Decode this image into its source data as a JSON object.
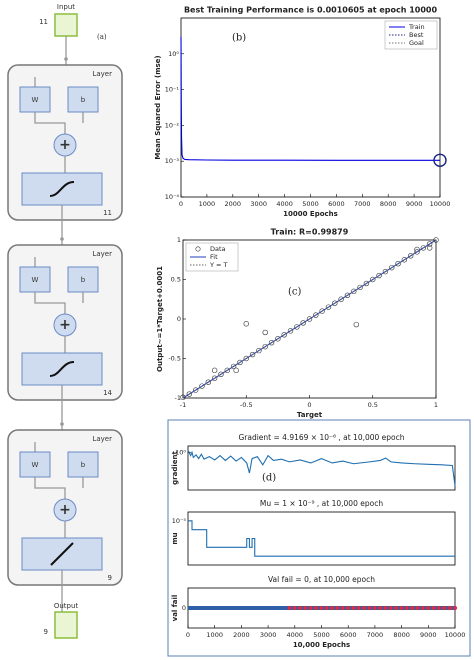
{
  "diagram": {
    "label": "(a)",
    "input": {
      "title": "Input",
      "size": "11"
    },
    "layers": [
      {
        "title": "Layer",
        "weight": "W",
        "bias": "b",
        "sum": "+",
        "size": "11"
      },
      {
        "title": "Layer",
        "weight": "W",
        "bias": "b",
        "sum": "+",
        "size": "14"
      },
      {
        "title": "Layer",
        "weight": "W",
        "bias": "b",
        "sum": "+",
        "size": "9"
      }
    ],
    "output": {
      "title": "Output",
      "size": "9"
    }
  },
  "chart_data": [
    {
      "type": "line",
      "title": "Best Training Performance is 0.0010605 at epoch 10000",
      "annotation": "(b)",
      "xlabel": "10000 Epochs",
      "ylabel": "Mean Squared Error  (mse)",
      "xlim": [
        0,
        10000
      ],
      "xticks": [
        0,
        1000,
        2000,
        3000,
        4000,
        5000,
        6000,
        7000,
        8000,
        9000,
        10000
      ],
      "ylim": [
        0.0001,
        10
      ],
      "ylog": true,
      "yticks": [
        {
          "value": 0.0001,
          "label": "10⁻⁴"
        },
        {
          "value": 0.001,
          "label": "10⁻³"
        },
        {
          "value": 0.01,
          "label": "10⁻²"
        },
        {
          "value": 0.1,
          "label": "10⁻¹"
        },
        {
          "value": 1,
          "label": "10⁰"
        }
      ],
      "legend": "upper right",
      "series": [
        {
          "name": "Train",
          "color": "#0000e0",
          "line": "solid",
          "x": [
            0,
            5,
            10,
            20,
            40,
            80,
            150,
            300,
            1000,
            2000,
            4000,
            6000,
            8000,
            10000
          ],
          "values": [
            3,
            0.5,
            0.05,
            0.005,
            0.0015,
            0.0012,
            0.00112,
            0.0011,
            0.00108,
            0.00107,
            0.00107,
            0.00106,
            0.00106,
            0.0010605
          ]
        },
        {
          "name": "Best",
          "color": "#1a237e",
          "line": "dotted",
          "marker": "large-circle",
          "x": [
            10000
          ],
          "values": [
            0.0010605
          ]
        },
        {
          "name": "Goal",
          "color": "#777777",
          "line": "dotted",
          "x": [],
          "values": []
        }
      ]
    },
    {
      "type": "scatter",
      "title": "Train: R=0.99879",
      "annotation": "(c)",
      "xlabel": "Target",
      "ylabel": "Output~=1*Target+0.0001",
      "xlim": [
        -1,
        1
      ],
      "xticks": [
        -1,
        -0.5,
        0,
        0.5,
        1
      ],
      "ylim": [
        -1,
        1
      ],
      "yticks": [
        -1,
        -0.5,
        0,
        0.5,
        1
      ],
      "legend": "upper left",
      "series": [
        {
          "name": "Data",
          "color": "#333333",
          "line": "none",
          "marker": "circle",
          "x": [
            -1,
            -0.95,
            -0.9,
            -0.85,
            -0.8,
            -0.75,
            -0.7,
            -0.65,
            -0.6,
            -0.55,
            -0.5,
            -0.45,
            -0.4,
            -0.35,
            -0.3,
            -0.25,
            -0.2,
            -0.15,
            -0.1,
            -0.05,
            0,
            0.05,
            0.1,
            0.15,
            0.2,
            0.25,
            0.3,
            0.35,
            0.4,
            0.45,
            0.5,
            0.55,
            0.6,
            0.65,
            0.7,
            0.75,
            0.8,
            0.85,
            0.9,
            0.95,
            1,
            -0.75,
            -0.58,
            -0.5,
            -0.35,
            0.37,
            0.85,
            0.95
          ],
          "values": [
            -0.99,
            -0.95,
            -0.9,
            -0.85,
            -0.8,
            -0.75,
            -0.7,
            -0.65,
            -0.6,
            -0.55,
            -0.5,
            -0.45,
            -0.4,
            -0.35,
            -0.3,
            -0.25,
            -0.2,
            -0.15,
            -0.1,
            -0.05,
            0,
            0.05,
            0.1,
            0.15,
            0.2,
            0.25,
            0.3,
            0.35,
            0.4,
            0.45,
            0.5,
            0.55,
            0.6,
            0.65,
            0.7,
            0.75,
            0.8,
            0.85,
            0.9,
            0.95,
            1,
            -0.65,
            -0.65,
            -0.06,
            -0.17,
            -0.07,
            0.88,
            0.9
          ]
        },
        {
          "name": "Fit",
          "color": "#1f3fbf",
          "line": "solid",
          "x": [
            -1,
            1
          ],
          "values": [
            -0.9999,
            1.0001
          ]
        },
        {
          "name": "Y = T",
          "color": "#666666",
          "line": "dotted",
          "x": [
            -1,
            1
          ],
          "values": [
            -1,
            1
          ]
        }
      ]
    },
    {
      "type": "line",
      "title": "Gradient = 4.9169 × 10⁻⁶ ,  at 10,000 epoch",
      "annotation": "(d)",
      "ylabel": "gradient",
      "xlim": [
        0,
        10000
      ],
      "ylim": [
        1e-06,
        10
      ],
      "ylog": true,
      "yticks": [
        {
          "value": 1,
          "label": "10⁰"
        }
      ],
      "series": [
        {
          "color": "#1f6fb0",
          "line": "solid",
          "x": [
            0,
            50,
            100,
            150,
            200,
            300,
            400,
            500,
            600,
            800,
            1000,
            1200,
            1400,
            1600,
            1800,
            2000,
            2200,
            2300,
            2400,
            2600,
            2800,
            3000,
            3200,
            3500,
            3800,
            4200,
            4600,
            5000,
            5400,
            5800,
            6200,
            6800,
            7200,
            7400,
            7600,
            8000,
            8500,
            9000,
            9500,
            9900,
            10000
          ],
          "values": [
            2,
            0.8,
            0.3,
            1,
            0.15,
            0.4,
            0.1,
            0.5,
            0.08,
            0.2,
            0.06,
            0.3,
            0.05,
            0.25,
            0.04,
            0.15,
            0.02,
            0.0005,
            0.1,
            0.2,
            0.01,
            0.3,
            0.05,
            0.08,
            0.03,
            0.06,
            0.02,
            0.1,
            0.02,
            0.04,
            0.015,
            0.03,
            0.05,
            0.12,
            0.03,
            0.02,
            0.015,
            0.012,
            0.01,
            0.008,
            4.9169e-06
          ]
        }
      ]
    },
    {
      "type": "line",
      "title": "Mu = 1 × 10⁻⁹ ,  at 10,000 epoch",
      "ylabel": "mu",
      "xlim": [
        0,
        10000
      ],
      "ylim": [
        1e-10,
        0.0001
      ],
      "ylog": true,
      "yticks": [
        {
          "value": 1e-05,
          "label": "10⁻⁵"
        }
      ],
      "series": [
        {
          "color": "#1f6fb0",
          "line": "solid",
          "x": [
            0,
            150,
            150,
            700,
            700,
            2200,
            2200,
            2300,
            2300,
            2400,
            2400,
            2500,
            2500,
            10000
          ],
          "values": [
            1e-05,
            1e-05,
            1e-06,
            1e-06,
            1e-08,
            1e-08,
            1e-07,
            1e-07,
            1e-08,
            1e-08,
            1e-07,
            1e-07,
            1e-09,
            1e-09
          ]
        }
      ]
    },
    {
      "type": "line",
      "title": "Val fail = 0,  at 10,000 epoch",
      "xlabel": "10,000 Epochs",
      "ylabel": "val fail",
      "xlim": [
        0,
        10000
      ],
      "xticks": [
        0,
        1000,
        2000,
        3000,
        4000,
        5000,
        6000,
        7000,
        8000,
        9000,
        10000
      ],
      "ylim": [
        -1,
        1
      ],
      "yticks": [
        0
      ],
      "series": [
        {
          "color": "#2f5fa8",
          "line": "thick",
          "x": [
            0,
            10000
          ],
          "values": [
            0,
            0
          ]
        },
        {
          "color": "#d0304a",
          "line": "none",
          "marker": "circle",
          "x": [
            3800,
            4000,
            4200,
            4400,
            4600,
            4800,
            5000,
            5200,
            5400,
            5600,
            5800,
            6000,
            6200,
            6400,
            6600,
            6800,
            7000,
            7200,
            7400,
            7600,
            7800,
            8000,
            8200,
            8400,
            8600,
            8800,
            9000,
            9200,
            9400,
            9600,
            9800,
            10000
          ],
          "values": [
            0,
            0,
            0,
            0,
            0,
            0,
            0,
            0,
            0,
            0,
            0,
            0,
            0,
            0,
            0,
            0,
            0,
            0,
            0,
            0,
            0,
            0,
            0,
            0,
            0,
            0,
            0,
            0,
            0,
            0,
            0,
            0
          ]
        }
      ]
    }
  ]
}
